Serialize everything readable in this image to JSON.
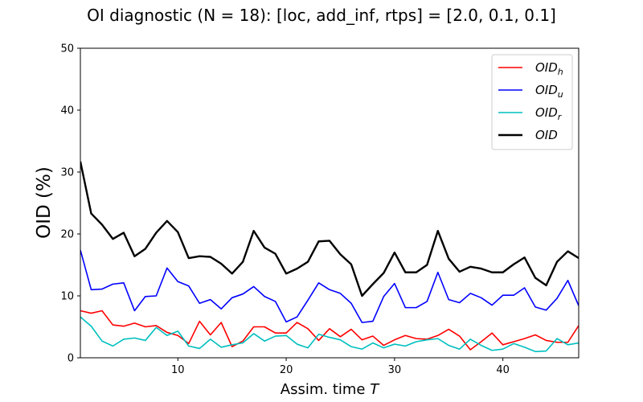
{
  "chart_data": {
    "type": "line",
    "title": "OI diagnostic  (N = 18): [loc, add_inf, rtps] = [2.0, 0.1, 0.1]",
    "xlabel": "Assim. time ",
    "xlabel_italic": "T",
    "ylabel": "OID (%)",
    "xlim": [
      1,
      47
    ],
    "ylim": [
      0,
      50
    ],
    "xticks": [
      10,
      20,
      30,
      40
    ],
    "yticks": [
      0,
      10,
      20,
      30,
      40,
      50
    ],
    "legend_position": "top-right",
    "x": [
      1,
      2,
      3,
      4,
      5,
      6,
      7,
      8,
      9,
      10,
      11,
      12,
      13,
      14,
      15,
      16,
      17,
      18,
      19,
      20,
      21,
      22,
      23,
      24,
      25,
      26,
      27,
      28,
      29,
      30,
      31,
      32,
      33,
      34,
      35,
      36,
      37,
      38,
      39,
      40,
      41,
      42,
      43,
      44,
      45,
      46,
      47
    ],
    "series": [
      {
        "name": "OID",
        "subscript": "h",
        "color": "#ff0000",
        "values": [
          7.6,
          7.2,
          7.6,
          5.3,
          5.1,
          5.6,
          5.0,
          5.2,
          4.1,
          3.6,
          2.3,
          5.9,
          3.7,
          5.7,
          1.8,
          2.7,
          5.0,
          5.0,
          4.0,
          4.0,
          5.7,
          4.7,
          2.8,
          4.7,
          3.4,
          4.6,
          2.9,
          3.5,
          2.0,
          2.9,
          3.6,
          3.1,
          3.0,
          3.6,
          4.6,
          3.5,
          1.3,
          2.6,
          4.0,
          2.1,
          2.6,
          3.1,
          3.7,
          2.8,
          2.5,
          2.5,
          5.2
        ]
      },
      {
        "name": "OID",
        "subscript": "u",
        "color": "#0000ff",
        "values": [
          17.4,
          11.0,
          11.1,
          11.9,
          12.1,
          7.6,
          9.9,
          10.0,
          14.5,
          12.3,
          11.6,
          8.8,
          9.4,
          7.9,
          9.7,
          10.3,
          11.5,
          9.9,
          9.1,
          5.8,
          6.6,
          9.3,
          12.1,
          11.0,
          10.4,
          8.8,
          5.7,
          5.9,
          9.9,
          12.0,
          8.1,
          8.1,
          9.1,
          13.8,
          9.4,
          8.9,
          10.4,
          9.7,
          8.5,
          10.1,
          10.1,
          11.3,
          8.2,
          7.7,
          9.6,
          12.5,
          8.4
        ]
      },
      {
        "name": "OID",
        "subscript": "r",
        "color": "#00bfbf",
        "values": [
          6.6,
          5.1,
          2.7,
          1.9,
          3.0,
          3.2,
          2.8,
          4.9,
          3.6,
          4.3,
          1.9,
          1.5,
          3.0,
          1.7,
          2.1,
          2.4,
          3.9,
          2.7,
          3.5,
          3.6,
          2.2,
          1.6,
          3.8,
          3.3,
          2.9,
          1.8,
          1.4,
          2.4,
          1.6,
          2.2,
          1.9,
          2.6,
          2.9,
          3.1,
          2.0,
          1.4,
          3.0,
          2.0,
          1.2,
          1.4,
          2.3,
          1.7,
          1.0,
          1.1,
          3.1,
          2.1,
          2.4
        ]
      },
      {
        "name": "OID",
        "subscript": "",
        "color": "#000000",
        "values": [
          31.7,
          23.3,
          21.5,
          19.2,
          20.2,
          16.4,
          17.6,
          20.2,
          22.1,
          20.3,
          16.1,
          16.4,
          16.3,
          15.2,
          13.6,
          15.5,
          20.5,
          17.8,
          16.8,
          13.6,
          14.4,
          15.5,
          18.8,
          18.9,
          16.7,
          15.1,
          10.0,
          11.9,
          13.7,
          17.0,
          13.8,
          13.8,
          15.0,
          20.5,
          16.0,
          13.9,
          14.7,
          14.4,
          13.8,
          13.8,
          15.1,
          16.2,
          12.9,
          11.7,
          15.5,
          17.2,
          16.1
        ]
      }
    ]
  }
}
